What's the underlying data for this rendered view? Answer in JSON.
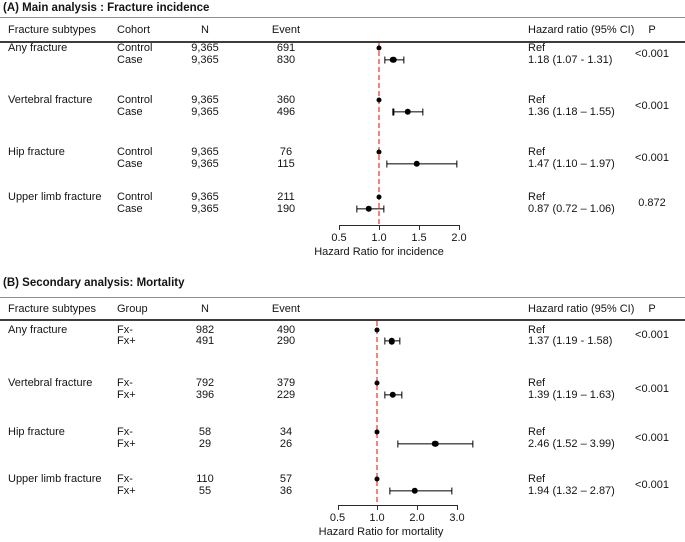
{
  "figure": {
    "background": "#ffffff",
    "colors": {
      "reference_line": "#f5837b",
      "marker": "#000000",
      "text": "#141414",
      "rule_dark": "#3d3d3d",
      "rule_light": "#909090"
    }
  },
  "chart_data": [
    {
      "type": "forest",
      "panel": "A",
      "title": "(A) Main analysis : Fracture incidence",
      "columns": {
        "subtype": "Fracture subtypes",
        "group": "Cohort",
        "n": "N",
        "event": "Event",
        "hr": "Hazard ratio (95% CI)",
        "p": "P"
      },
      "axis": {
        "label": "Hazard Ratio for incidence",
        "scale": "linear",
        "ref_line": 1.0,
        "ticks": [
          0.5,
          1.0,
          1.5,
          2.0
        ],
        "tick_labels": [
          "0.5",
          "1.0",
          "1.5",
          "2.0"
        ],
        "range": [
          0.5,
          2.0
        ]
      },
      "rows": [
        {
          "subtype": "Any fracture",
          "p": "<0.001",
          "groups": [
            {
              "name": "Control",
              "n": "9,365",
              "event": "691",
              "hr": 1.0,
              "is_ref": true,
              "hr_label": "Ref"
            },
            {
              "name": "Case",
              "n": "9,365",
              "event": "830",
              "hr": 1.18,
              "ci_low": 1.07,
              "ci_high": 1.31,
              "hr_label": "1.18 (1.07 - 1.31)"
            }
          ]
        },
        {
          "subtype": "Vertebral fracture",
          "p": "<0.001",
          "groups": [
            {
              "name": "Control",
              "n": "9,365",
              "event": "360",
              "hr": 1.0,
              "is_ref": true,
              "hr_label": "Ref"
            },
            {
              "name": "Case",
              "n": "9,365",
              "event": "496",
              "hr": 1.36,
              "ci_low": 1.18,
              "ci_high": 1.55,
              "hr_label": "1.36 (1.18 – 1.55)"
            }
          ]
        },
        {
          "subtype": "Hip fracture",
          "p": "<0.001",
          "groups": [
            {
              "name": "Control",
              "n": "9,365",
              "event": "76",
              "hr": 1.0,
              "is_ref": true,
              "hr_label": "Ref"
            },
            {
              "name": "Case",
              "n": "9,365",
              "event": "115",
              "hr": 1.47,
              "ci_low": 1.1,
              "ci_high": 1.97,
              "hr_label": "1.47 (1.10 – 1.97)"
            }
          ]
        },
        {
          "subtype": "Upper limb fracture",
          "p": "0.872",
          "groups": [
            {
              "name": "Control",
              "n": "9,365",
              "event": "211",
              "hr": 1.0,
              "is_ref": true,
              "hr_label": "Ref"
            },
            {
              "name": "Case",
              "n": "9,365",
              "event": "190",
              "hr": 0.87,
              "ci_low": 0.72,
              "ci_high": 1.06,
              "hr_label": "0.87 (0.72 – 1.06)"
            }
          ]
        }
      ]
    },
    {
      "type": "forest",
      "panel": "B",
      "title": "(B) Secondary analysis: Mortality",
      "columns": {
        "subtype": "Fracture subtypes",
        "group": "Group",
        "n": "N",
        "event": "Event",
        "hr": "Hazard ratio (95% CI)",
        "p": "P"
      },
      "axis": {
        "label": "Hazard Ratio for mortality",
        "scale": "compressed above 1.0",
        "ref_line": 1.0,
        "ticks": [
          0.5,
          1.0,
          2.0,
          3.0
        ],
        "tick_labels": [
          "0.5",
          "1.0",
          "2.0",
          "3.0"
        ],
        "range": [
          0.5,
          3.0
        ]
      },
      "rows": [
        {
          "subtype": "Any fracture",
          "p": "<0.001",
          "groups": [
            {
              "name": "Fx-",
              "n": "982",
              "event": "490",
              "hr": 1.0,
              "is_ref": true,
              "hr_label": "Ref"
            },
            {
              "name": "Fx+",
              "n": "491",
              "event": "290",
              "hr": 1.37,
              "ci_low": 1.19,
              "ci_high": 1.58,
              "hr_label": "1.37 (1.19 - 1.58)"
            }
          ]
        },
        {
          "subtype": "Vertebral fracture",
          "p": "<0.001",
          "groups": [
            {
              "name": "Fx-",
              "n": "792",
              "event": "379",
              "hr": 1.0,
              "is_ref": true,
              "hr_label": "Ref"
            },
            {
              "name": "Fx+",
              "n": "396",
              "event": "229",
              "hr": 1.39,
              "ci_low": 1.19,
              "ci_high": 1.63,
              "hr_label": "1.39 (1.19 – 1.63)"
            }
          ]
        },
        {
          "subtype": "Hip fracture",
          "p": "<0.001",
          "groups": [
            {
              "name": "Fx-",
              "n": "58",
              "event": "34",
              "hr": 1.0,
              "is_ref": true,
              "hr_label": "Ref"
            },
            {
              "name": "Fx+",
              "n": "29",
              "event": "26",
              "hr": 2.46,
              "ci_low": 1.52,
              "ci_high": 3.99,
              "hr_label": "2.46 (1.52 – 3.99)"
            }
          ]
        },
        {
          "subtype": "Upper limb fracture",
          "p": "<0.001",
          "groups": [
            {
              "name": "Fx-",
              "n": "110",
              "event": "57",
              "hr": 1.0,
              "is_ref": true,
              "hr_label": "Ref"
            },
            {
              "name": "Fx+",
              "n": "55",
              "event": "36",
              "hr": 1.94,
              "ci_low": 1.32,
              "ci_high": 2.87,
              "hr_label": "1.94 (1.32 – 2.87)"
            }
          ]
        }
      ]
    }
  ]
}
